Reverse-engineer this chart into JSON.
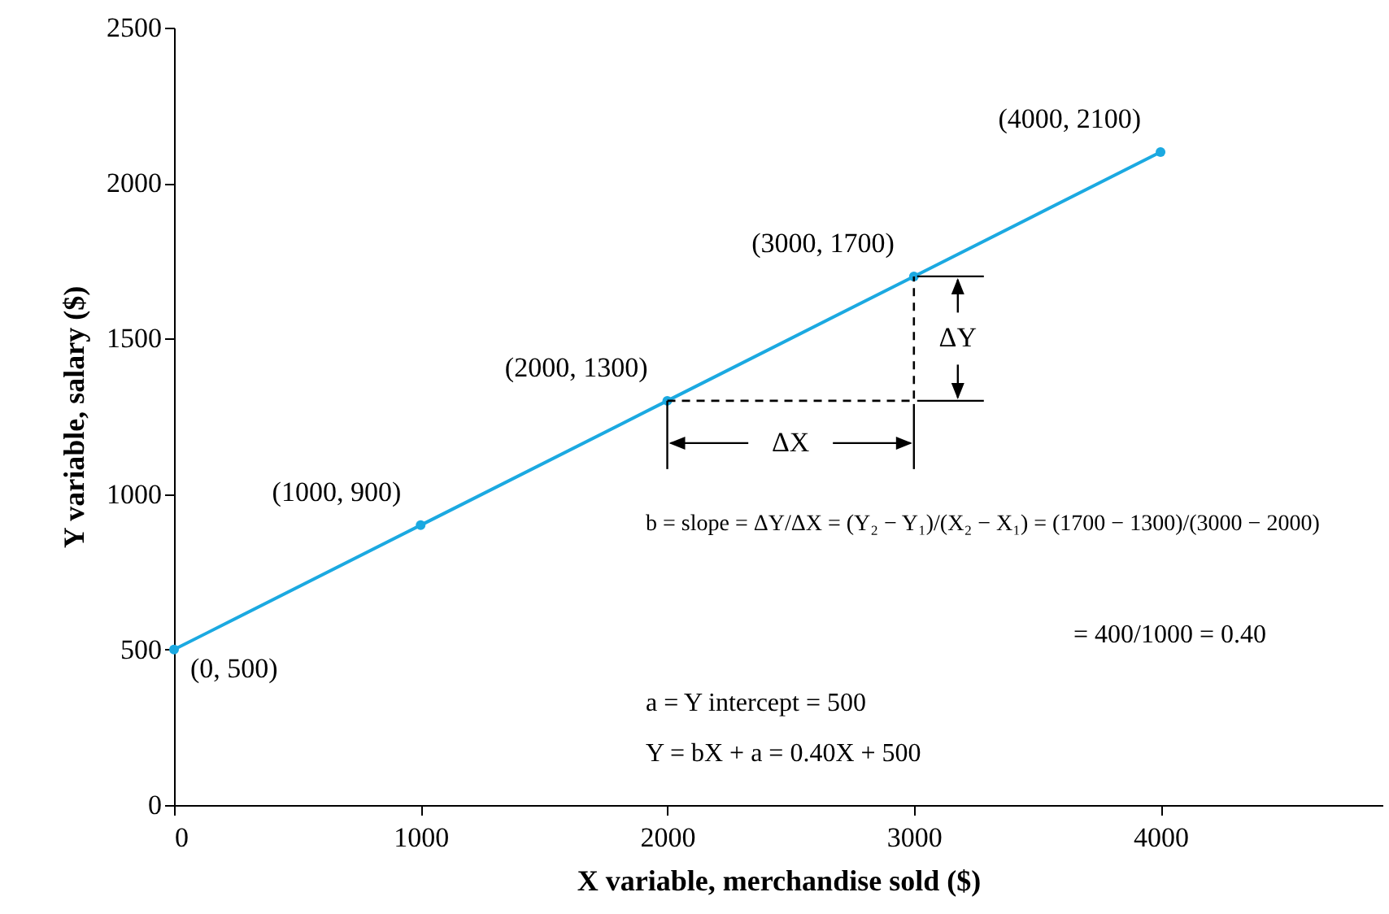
{
  "chart_data": {
    "type": "line",
    "xlabel": "X variable, merchandise sold ($)",
    "ylabel": "Y variable, salary ($)",
    "xlim": [
      0,
      4900
    ],
    "ylim": [
      0,
      2500
    ],
    "xticks": [
      0,
      1000,
      2000,
      3000,
      4000
    ],
    "yticks": [
      0,
      500,
      1000,
      1500,
      2000,
      2500
    ],
    "marker": "circle",
    "series": [
      {
        "x": [
          0,
          1000,
          2000,
          3000,
          4000
        ],
        "values": [
          500,
          900,
          1300,
          1700,
          2100
        ],
        "color": "#1ba9e1"
      },
      {
        "type": "line",
        "x": [
          2000,
          3000,
          3000
        ],
        "values": [
          1300,
          1300,
          1700
        ],
        "color": "#000000",
        "line_style": "dashed",
        "marker": "none"
      }
    ],
    "annotations": [
      {
        "text": "(0, 500)",
        "x": 0,
        "y": 500
      },
      {
        "text": "(1000, 900)",
        "x": 1000,
        "y": 900
      },
      {
        "text": "(2000, 1300)",
        "x": 2000,
        "y": 1300
      },
      {
        "text": "(3000, 1700)",
        "x": 3000,
        "y": 1700
      },
      {
        "text": "(4000, 2100)",
        "x": 4000,
        "y": 2100
      },
      "ΔX",
      "ΔY",
      "b = slope = ΔY/ΔX = (Y₂ − Y₁)/(X₂ − X₁) = (1700 − 1300)/(3000 − 2000)",
      "= 400/1000 = 0.40",
      "a = Y intercept = 500",
      "Y = bX + a = 0.40X + 500"
    ]
  }
}
